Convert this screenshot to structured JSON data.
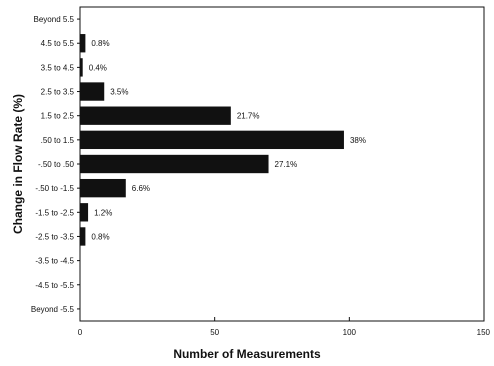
{
  "chart_data": {
    "type": "bar",
    "orientation": "horizontal",
    "title": "",
    "xlabel": "Number of Measurements",
    "ylabel": "Change in Flow Rate (%)",
    "xlim": [
      0,
      150
    ],
    "x_ticks": [
      "0",
      "50",
      "100",
      "150"
    ],
    "grid": false,
    "legend": "none",
    "bar_color": "#111111",
    "categories": [
      "Beyond 5.5",
      "4.5 to 5.5",
      "3.5 to 4.5",
      "2.5 to 3.5",
      "1.5 to 2.5",
      ".50 to 1.5",
      "-.50 to .50",
      "-.50 to -1.5",
      "-1.5 to -2.5",
      "-2.5 to -3.5",
      "-3.5 to -4.5",
      "-4.5 to -5.5",
      "Beyond -5.5"
    ],
    "values": [
      0,
      2,
      1,
      9,
      56,
      98,
      70,
      17,
      3,
      2,
      0,
      0,
      0
    ],
    "data_labels": [
      "",
      "0.8%",
      "0.4%",
      "3.5%",
      "21.7%",
      "38%",
      "27.1%",
      "6.6%",
      "1.2%",
      "0.8%",
      "",
      "",
      ""
    ]
  }
}
